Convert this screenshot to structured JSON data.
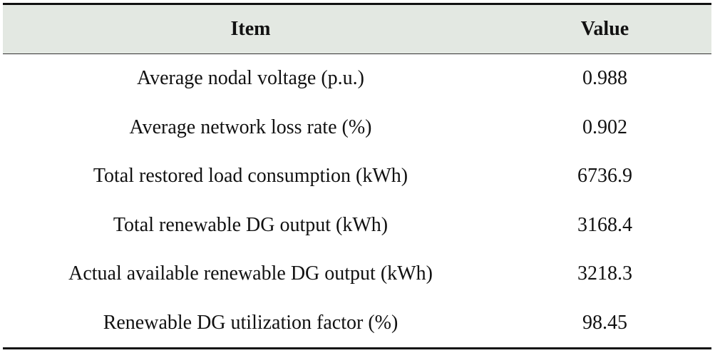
{
  "table": {
    "headers": [
      "Item",
      "Value"
    ],
    "rows": [
      {
        "item": "Average nodal voltage (p.u.)",
        "value": "0.988"
      },
      {
        "item": "Average network loss rate (%)",
        "value": "0.902"
      },
      {
        "item": "Total restored load consumption (kWh)",
        "value": "6736.9"
      },
      {
        "item": "Total renewable DG output (kWh)",
        "value": "3168.4"
      },
      {
        "item": "Actual available renewable DG output (kWh)",
        "value": "3218.3"
      },
      {
        "item": "Renewable DG utilization factor (%)",
        "value": "98.45"
      }
    ],
    "header_bg": "#e3e8e2"
  }
}
